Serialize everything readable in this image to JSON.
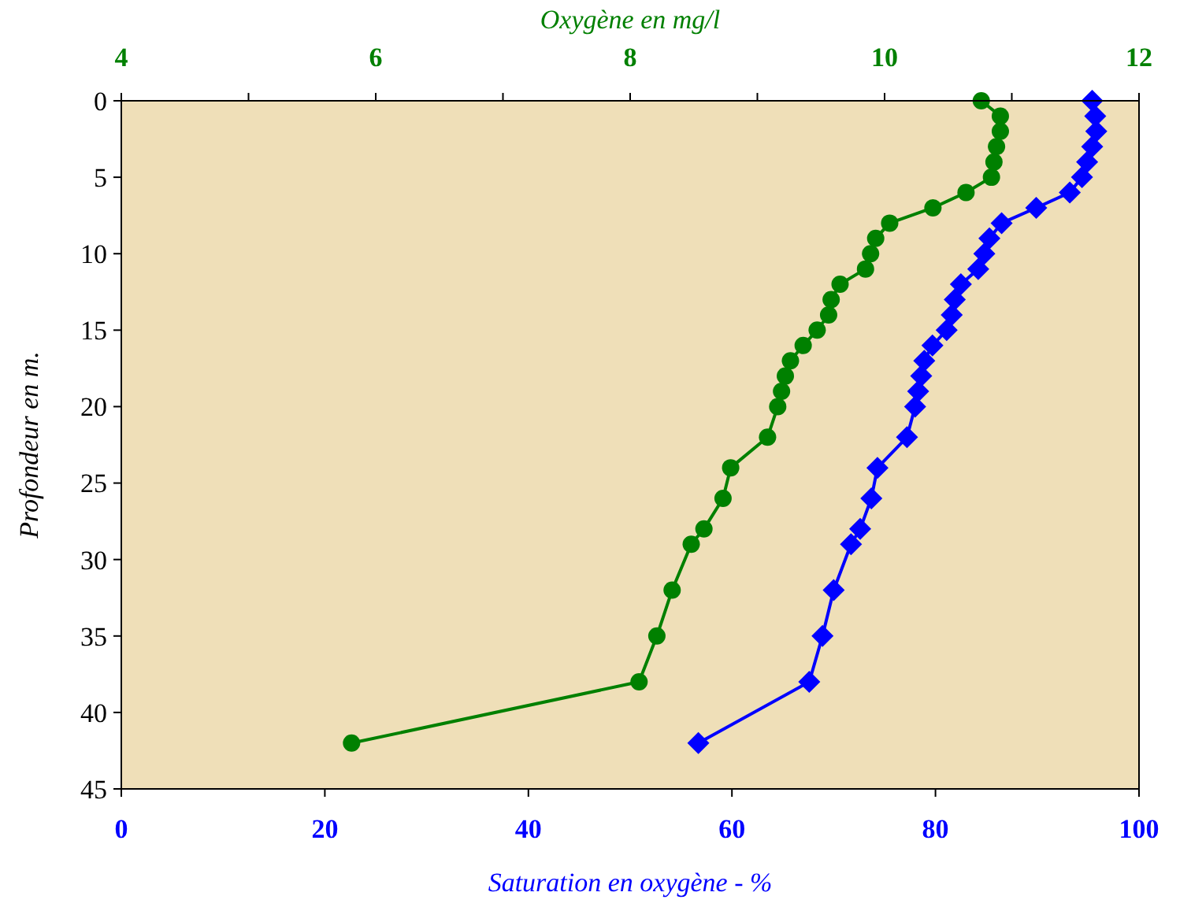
{
  "chart_data": {
    "type": "line",
    "orientation": "horizontal",
    "xlabel": "Saturation en oxygène - %",
    "x2label": "Oxygène en mg/l",
    "ylabel": "Profondeur en m.",
    "x": [
      0,
      1,
      2,
      3,
      4,
      5,
      6,
      7,
      8,
      9,
      10,
      11,
      12,
      13,
      14,
      15,
      16,
      17,
      18,
      19,
      20,
      22,
      24,
      26,
      28,
      29,
      32,
      35,
      38,
      42
    ],
    "series": [
      {
        "color": "#008000",
        "marker": "circle",
        "axis": "x2",
        "values": [
          10.76,
          10.91,
          10.91,
          10.88,
          10.86,
          10.84,
          10.64,
          10.38,
          10.04,
          9.93,
          9.89,
          9.85,
          9.65,
          9.58,
          9.56,
          9.47,
          9.36,
          9.26,
          9.22,
          9.19,
          9.16,
          9.08,
          8.79,
          8.73,
          8.58,
          8.48,
          8.33,
          8.21,
          8.07,
          5.81
        ]
      },
      {
        "color": "#0000ff",
        "marker": "diamond",
        "values": [
          95.4,
          95.7,
          95.8,
          95.4,
          94.9,
          94.4,
          93.2,
          89.9,
          86.5,
          85.3,
          84.8,
          84.2,
          82.5,
          81.9,
          81.6,
          81.1,
          79.7,
          78.9,
          78.6,
          78.3,
          78.0,
          77.2,
          74.3,
          73.7,
          72.6,
          71.7,
          70.0,
          68.9,
          67.6,
          56.7
        ]
      }
    ],
    "xlim": [
      0,
      100
    ],
    "xticks": [
      0,
      20,
      40,
      60,
      80,
      100
    ],
    "x2lim": [
      4,
      12
    ],
    "x2ticks": [
      4,
      {
        "value": 5,
        "label": null
      },
      6,
      {
        "value": 7,
        "label": null
      },
      8,
      {
        "value": 9,
        "label": null
      },
      10,
      {
        "value": 11,
        "label": null
      },
      12
    ],
    "ylim": [
      45,
      0
    ],
    "yticks": [
      0,
      5,
      10,
      15,
      20,
      25,
      30,
      35,
      40,
      45
    ],
    "grid": false
  }
}
